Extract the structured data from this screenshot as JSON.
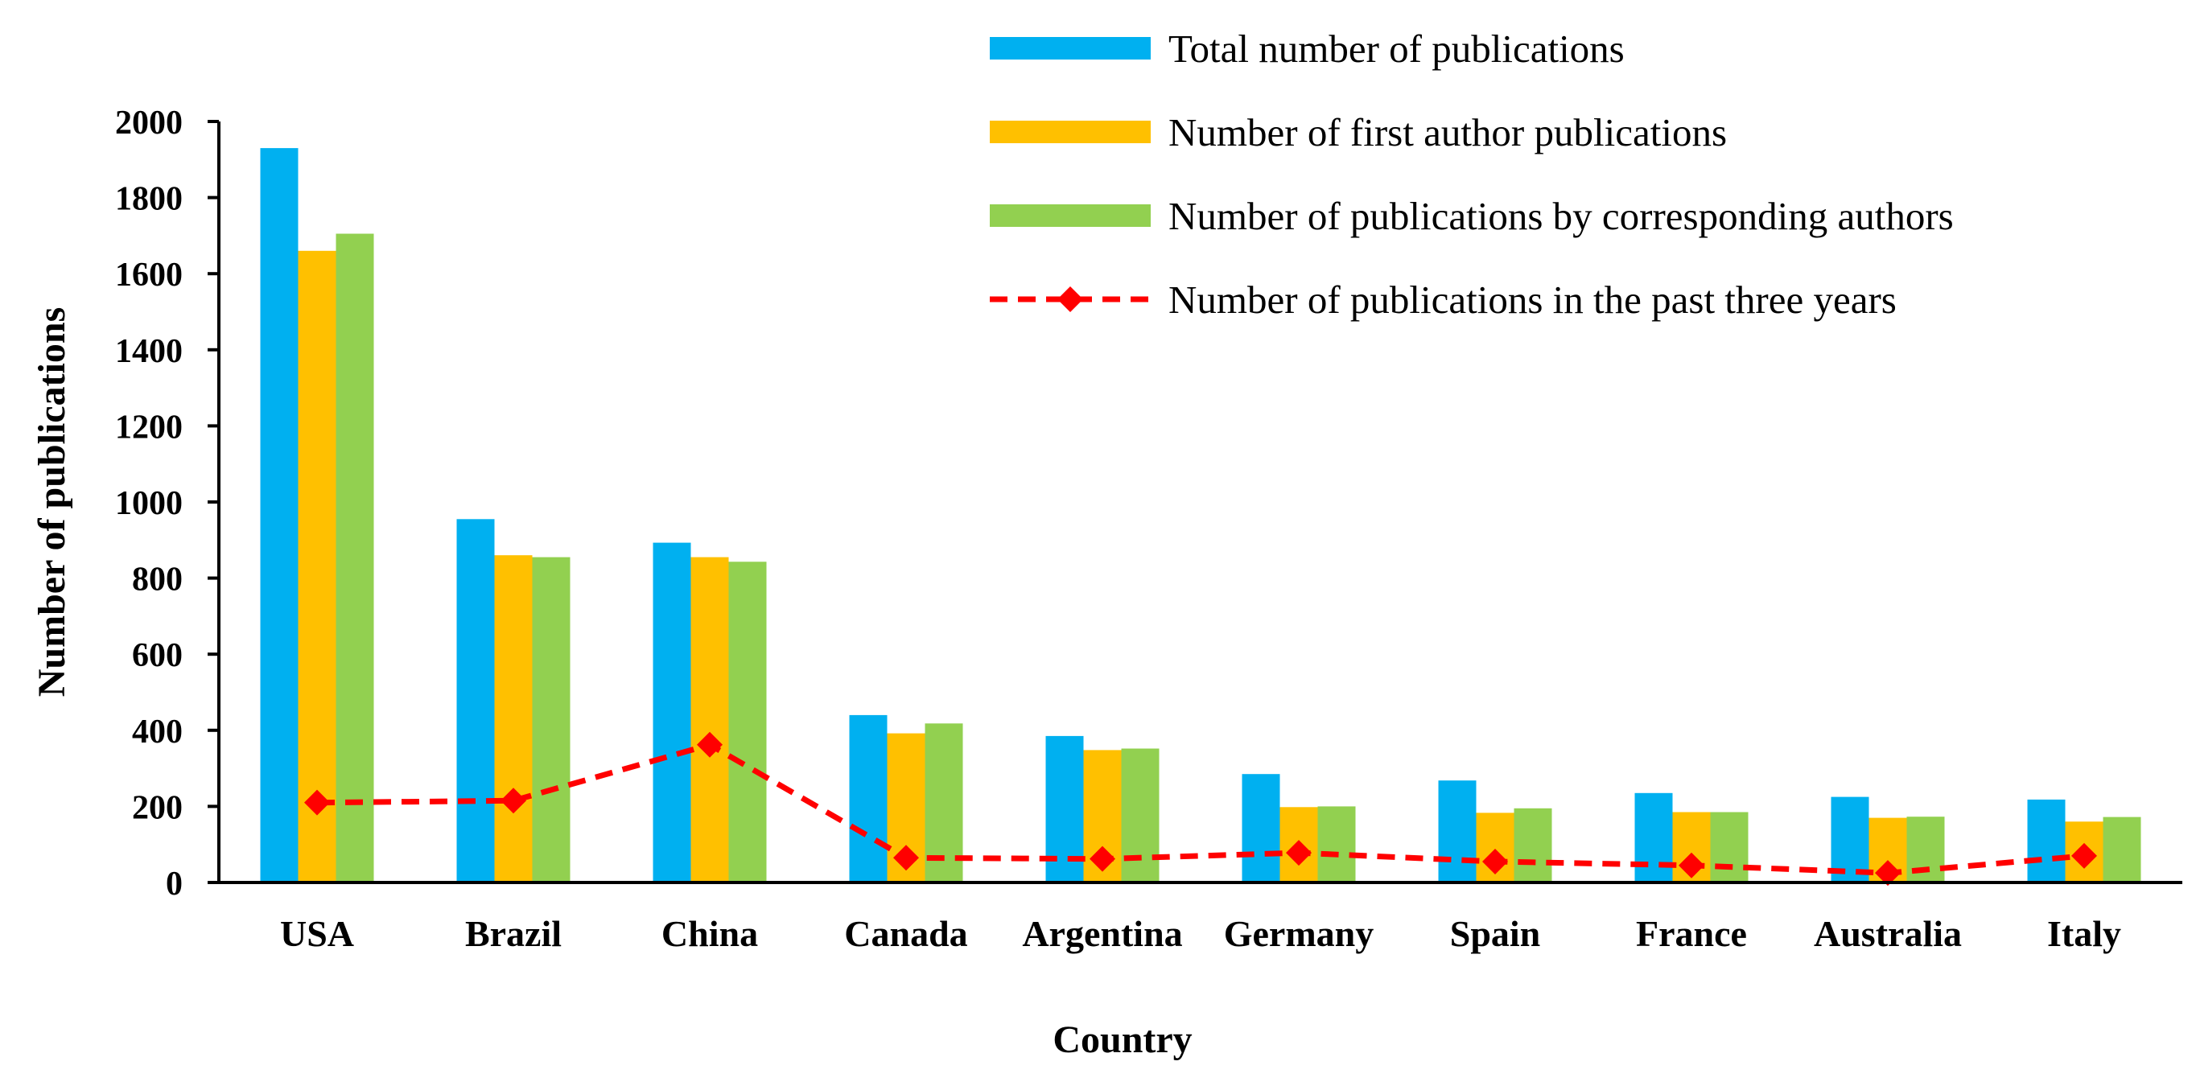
{
  "chart_data": {
    "type": "bar",
    "title": "",
    "xlabel": "Country",
    "ylabel": "Number of publications",
    "ylim": [
      0,
      2000
    ],
    "yticks": [
      0,
      200,
      400,
      600,
      800,
      1000,
      1200,
      1400,
      1600,
      1800,
      2000
    ],
    "grid": false,
    "legend_position": "top-right",
    "categories": [
      "USA",
      "Brazil",
      "China",
      "Canada",
      "Argentina",
      "Germany",
      "Spain",
      "France",
      "Australia",
      "Italy"
    ],
    "series": [
      {
        "name": "Total number of publications",
        "type": "bar",
        "color": "#00B0F0",
        "values": [
          1930,
          955,
          893,
          440,
          385,
          285,
          268,
          235,
          225,
          218
        ]
      },
      {
        "name": "Number of first author publications",
        "type": "bar",
        "color": "#FFC000",
        "values": [
          1660,
          860,
          855,
          392,
          348,
          198,
          183,
          185,
          170,
          160
        ]
      },
      {
        "name": "Number of publications by corresponding authors",
        "type": "bar",
        "color": "#92D050",
        "values": [
          1705,
          855,
          843,
          418,
          352,
          200,
          195,
          185,
          173,
          172
        ]
      },
      {
        "name": "Number of publications in the past three years",
        "type": "line",
        "color": "#FF0000",
        "style": "dashed",
        "marker": "diamond",
        "values": [
          210,
          215,
          362,
          65,
          62,
          78,
          55,
          45,
          25,
          70
        ]
      }
    ]
  }
}
